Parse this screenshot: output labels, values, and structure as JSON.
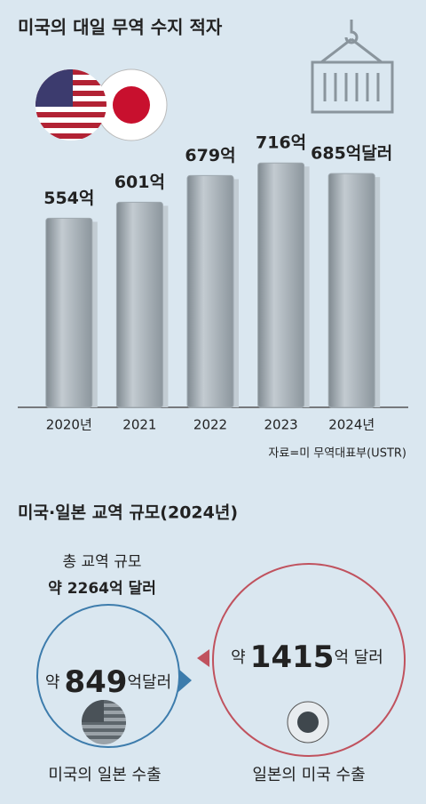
{
  "chart_data": {
    "type": "bar",
    "title": "미국의 대일 무역 수지 적자",
    "categories": [
      "2020년",
      "2021",
      "2022",
      "2023",
      "2024년"
    ],
    "values": [
      554,
      601,
      679,
      716,
      685
    ],
    "value_labels": [
      "554억",
      "601억",
      "679억",
      "716억",
      "685억달러"
    ],
    "color": "#9fa9b0",
    "ylim": [
      0,
      800
    ],
    "source": "자료=미 무역대표부(USTR)"
  },
  "trade": {
    "title": "미국·일본 교역 규모(2024년)",
    "total_label": "총 교역 규모",
    "total_value": "약 2264억 달러",
    "us_export": {
      "prefix": "약",
      "amount": 849,
      "unit": "억달러",
      "label": "미국의 일본 수출"
    },
    "japan_export": {
      "prefix": "약",
      "amount": 1415,
      "unit": "억 달러",
      "label": "일본의 미국 수출"
    }
  }
}
